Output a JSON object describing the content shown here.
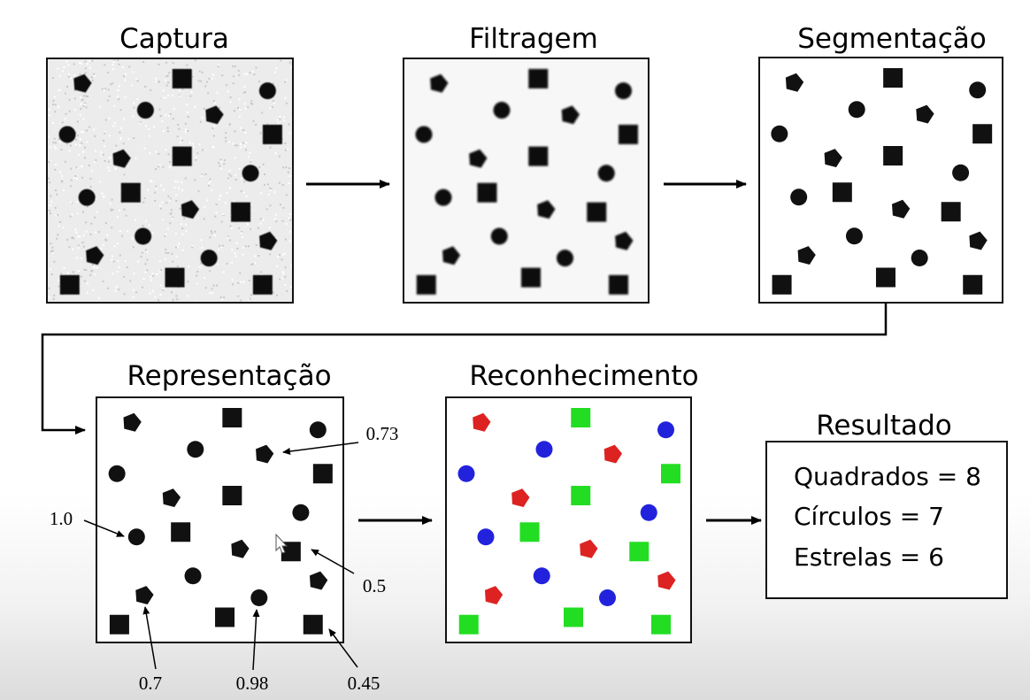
{
  "stages": {
    "captura": "Captura",
    "filtragem": "Filtragem",
    "segmentacao": "Segmentação",
    "representacao": "Representação",
    "reconhecimento": "Reconhecimento",
    "resultado": "Resultado"
  },
  "annotations": {
    "a073": "0.73",
    "a10": "1.0",
    "a05": "0.5",
    "a07": "0.7",
    "a098": "0.98",
    "a045": "0.45"
  },
  "results": {
    "quadrados": "Quadrados = 8",
    "circulos": "Círculos = 7",
    "estrelas": "Estrelas = 6"
  },
  "colors": {
    "square": "#22dd22",
    "circle": "#2222dd",
    "star": "#dd2222",
    "shape": "#111111"
  }
}
